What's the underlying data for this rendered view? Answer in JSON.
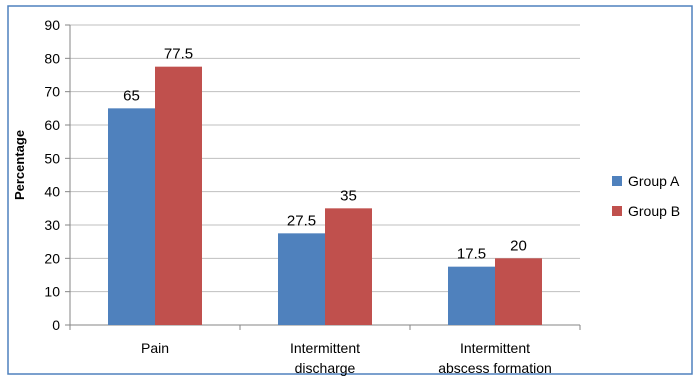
{
  "chart_data": {
    "type": "bar",
    "categories": [
      [
        "Pain"
      ],
      [
        "Intermittent",
        "discharge"
      ],
      [
        "Intermittent",
        "abscess formation"
      ]
    ],
    "series": [
      {
        "name": "Group A",
        "values": [
          65,
          27.5,
          17.5
        ],
        "color": "#4F81BD"
      },
      {
        "name": "Group B",
        "values": [
          77.5,
          35,
          20
        ],
        "color": "#C0504D"
      }
    ],
    "data_labels": [
      [
        "65",
        "27.5",
        "17.5"
      ],
      [
        "77.5",
        "35",
        "20"
      ]
    ],
    "title": "",
    "xlabel": "",
    "ylabel": "Percentage",
    "ylim": [
      0,
      90
    ],
    "yticks": [
      "0",
      "10",
      "20",
      "30",
      "40",
      "50",
      "60",
      "70",
      "80",
      "90"
    ],
    "grid": true,
    "legend_position": "right",
    "border_color": "#4F81BD",
    "grid_color": "#BFBFBF"
  }
}
